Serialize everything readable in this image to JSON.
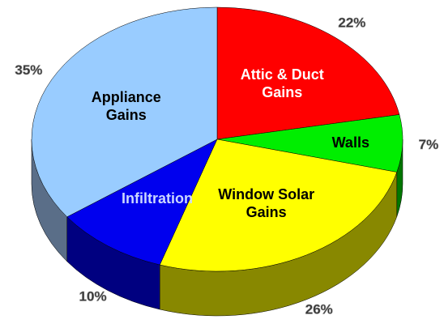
{
  "chart_data": {
    "type": "pie",
    "categories": [
      "Attic & Duct Gains",
      "Walls",
      "Window Solar Gains",
      "Infiltration",
      "Appliance Gains"
    ],
    "values": [
      22,
      7,
      26,
      10,
      35
    ],
    "value_labels": [
      "22%",
      "7%",
      "26%",
      "10%",
      "35%"
    ],
    "colors": [
      "#ff0000",
      "#00ee00",
      "#ffff00",
      "#0000ee",
      "#99ccff"
    ],
    "side_colors": [
      "#990000",
      "#007700",
      "#888800",
      "#000080",
      "#5a6e88"
    ]
  }
}
